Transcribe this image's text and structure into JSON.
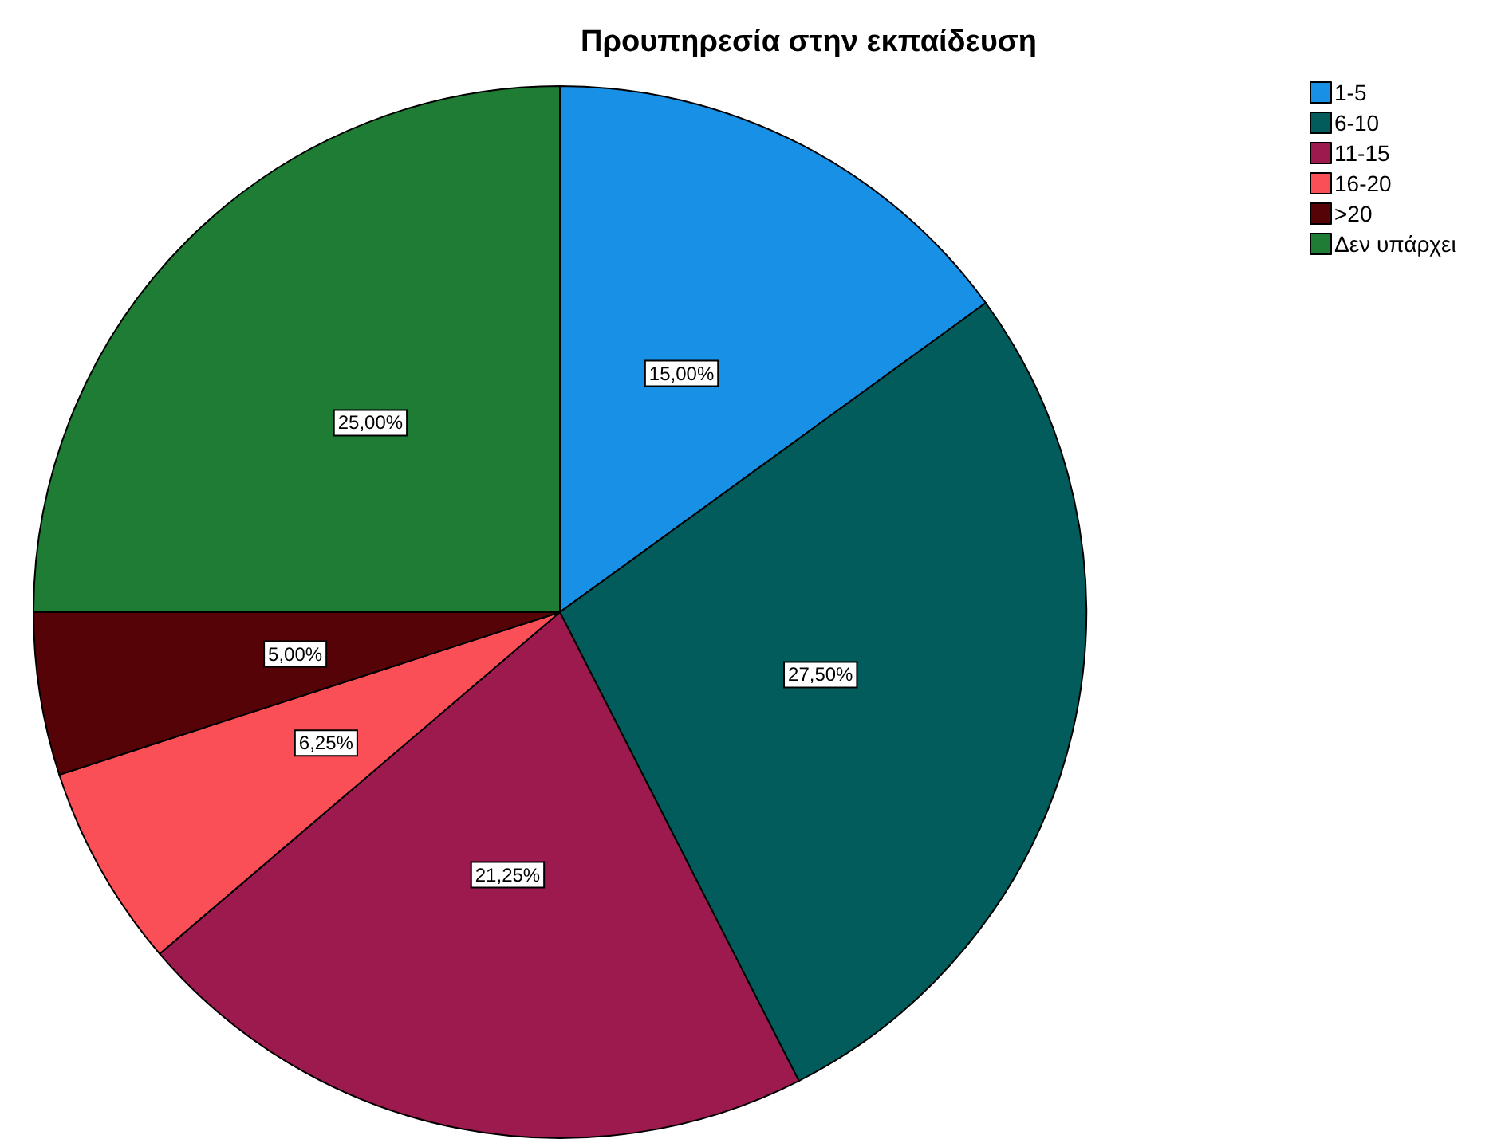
{
  "chart_data": {
    "type": "pie",
    "title": "Προυπηρεσία στην εκπαίδευση",
    "categories": [
      "1-5",
      "6-10",
      "11-15",
      "16-20",
      ">20",
      "Δεν υπάρχει"
    ],
    "values": [
      15,
      27.5,
      21.25,
      6.25,
      5,
      25
    ],
    "colors": [
      "#1790e5",
      "#035c5c",
      "#9c1a4e",
      "#fa4f57",
      "#560308",
      "#1e7c34"
    ],
    "value_labels": [
      "15,00%",
      "27,50%",
      "21,25%",
      "6,25%",
      "5,00%",
      "25,00%"
    ],
    "legend": "top right"
  }
}
